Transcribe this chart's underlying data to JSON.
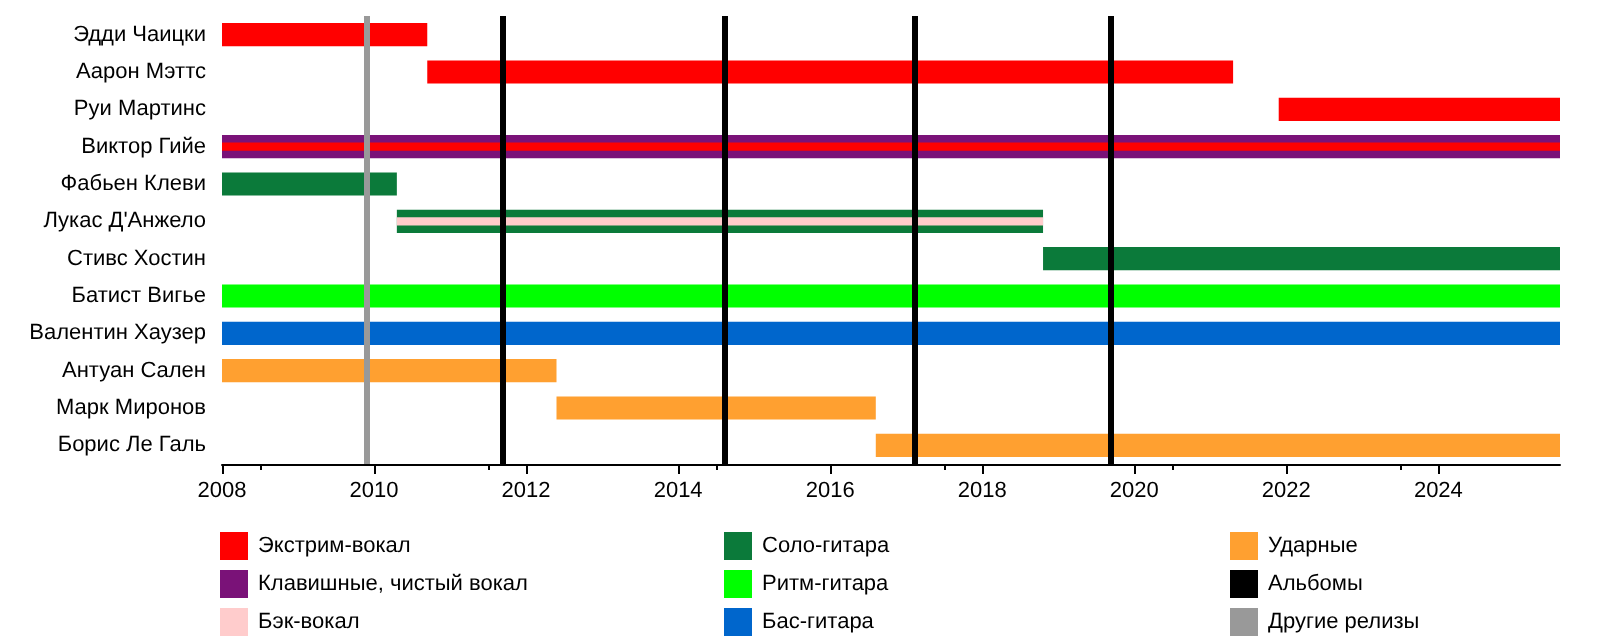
{
  "chart_data": {
    "type": "bar",
    "orientation": "horizontal",
    "categories": [
      "Эдди Чаицки",
      "Аарон Мэттс",
      "Руи Мартинс",
      "Виктор Гийе",
      "Фабьен Клеви",
      "Лукас Д'Анжело",
      "Стивс Хостин",
      "Батист Вигье",
      "Валентин Хаузер",
      "Антуан Сален",
      "Марк Миронов",
      "Борис Ле Галь"
    ],
    "series": [
      {
        "name": "Экстрим-вокал",
        "color": "#ff0000",
        "base": [
          2008,
          2010.7,
          2021.9,
          2008,
          null,
          null,
          null,
          null,
          null,
          null,
          null,
          null
        ],
        "values": [
          2.7,
          10.6,
          3.7,
          17.6,
          null,
          null,
          null,
          null,
          null,
          null,
          null,
          null
        ]
      },
      {
        "name": "Клавишные, чистый вокал",
        "color": "#7a1278",
        "base": [
          null,
          null,
          null,
          2008,
          null,
          null,
          null,
          null,
          null,
          null,
          null,
          null
        ],
        "values": [
          null,
          null,
          null,
          17.6,
          null,
          null,
          null,
          null,
          null,
          null,
          null,
          null
        ]
      },
      {
        "name": "Бэк-вокал",
        "color": "#ffcccc",
        "base": [
          null,
          null,
          null,
          null,
          null,
          2010.3,
          null,
          null,
          null,
          null,
          null,
          null
        ],
        "values": [
          null,
          null,
          null,
          null,
          null,
          8.5,
          null,
          null,
          null,
          null,
          null,
          null
        ]
      },
      {
        "name": "Соло-гитара",
        "color": "#0b7a3a",
        "base": [
          null,
          null,
          null,
          null,
          2008,
          2010.3,
          2018.8,
          null,
          null,
          null,
          null,
          null
        ],
        "values": [
          null,
          null,
          null,
          null,
          2.3,
          8.5,
          6.8,
          null,
          null,
          null,
          null,
          null
        ]
      },
      {
        "name": "Ритм-гитара",
        "color": "#00ff00",
        "base": [
          null,
          null,
          null,
          null,
          null,
          null,
          null,
          2008,
          null,
          null,
          null,
          null
        ],
        "values": [
          null,
          null,
          null,
          null,
          null,
          null,
          null,
          17.6,
          null,
          null,
          null,
          null
        ]
      },
      {
        "name": "Бас-гитара",
        "color": "#0066cc",
        "base": [
          null,
          null,
          null,
          null,
          null,
          null,
          null,
          null,
          2008,
          null,
          null,
          null
        ],
        "values": [
          null,
          null,
          null,
          null,
          null,
          null,
          null,
          null,
          17.6,
          null,
          null,
          null
        ]
      },
      {
        "name": "Ударные",
        "color": "#ffa030",
        "base": [
          null,
          null,
          null,
          null,
          null,
          null,
          null,
          null,
          null,
          2008,
          2012.4,
          2016.6
        ],
        "values": [
          null,
          null,
          null,
          null,
          null,
          null,
          null,
          null,
          null,
          4.4,
          4.2,
          9.0
        ]
      }
    ],
    "ref_lines": [
      {
        "axis": "x",
        "value": 2011.7,
        "label": "Альбомы",
        "color": "#000000"
      },
      {
        "axis": "x",
        "value": 2014.6,
        "color": "#000000"
      },
      {
        "axis": "x",
        "value": 2017.1,
        "color": "#000000"
      },
      {
        "axis": "x",
        "value": 2019.7,
        "color": "#000000"
      },
      {
        "axis": "x",
        "value": 2009.9,
        "label": "Другие релизы",
        "color": "#999999"
      }
    ],
    "xlim": [
      2008,
      2025.6
    ],
    "xticks": [
      2008,
      2010,
      2012,
      2014,
      2016,
      2018,
      2020,
      2022,
      2024
    ],
    "grid": false,
    "legend": "bottom"
  }
}
